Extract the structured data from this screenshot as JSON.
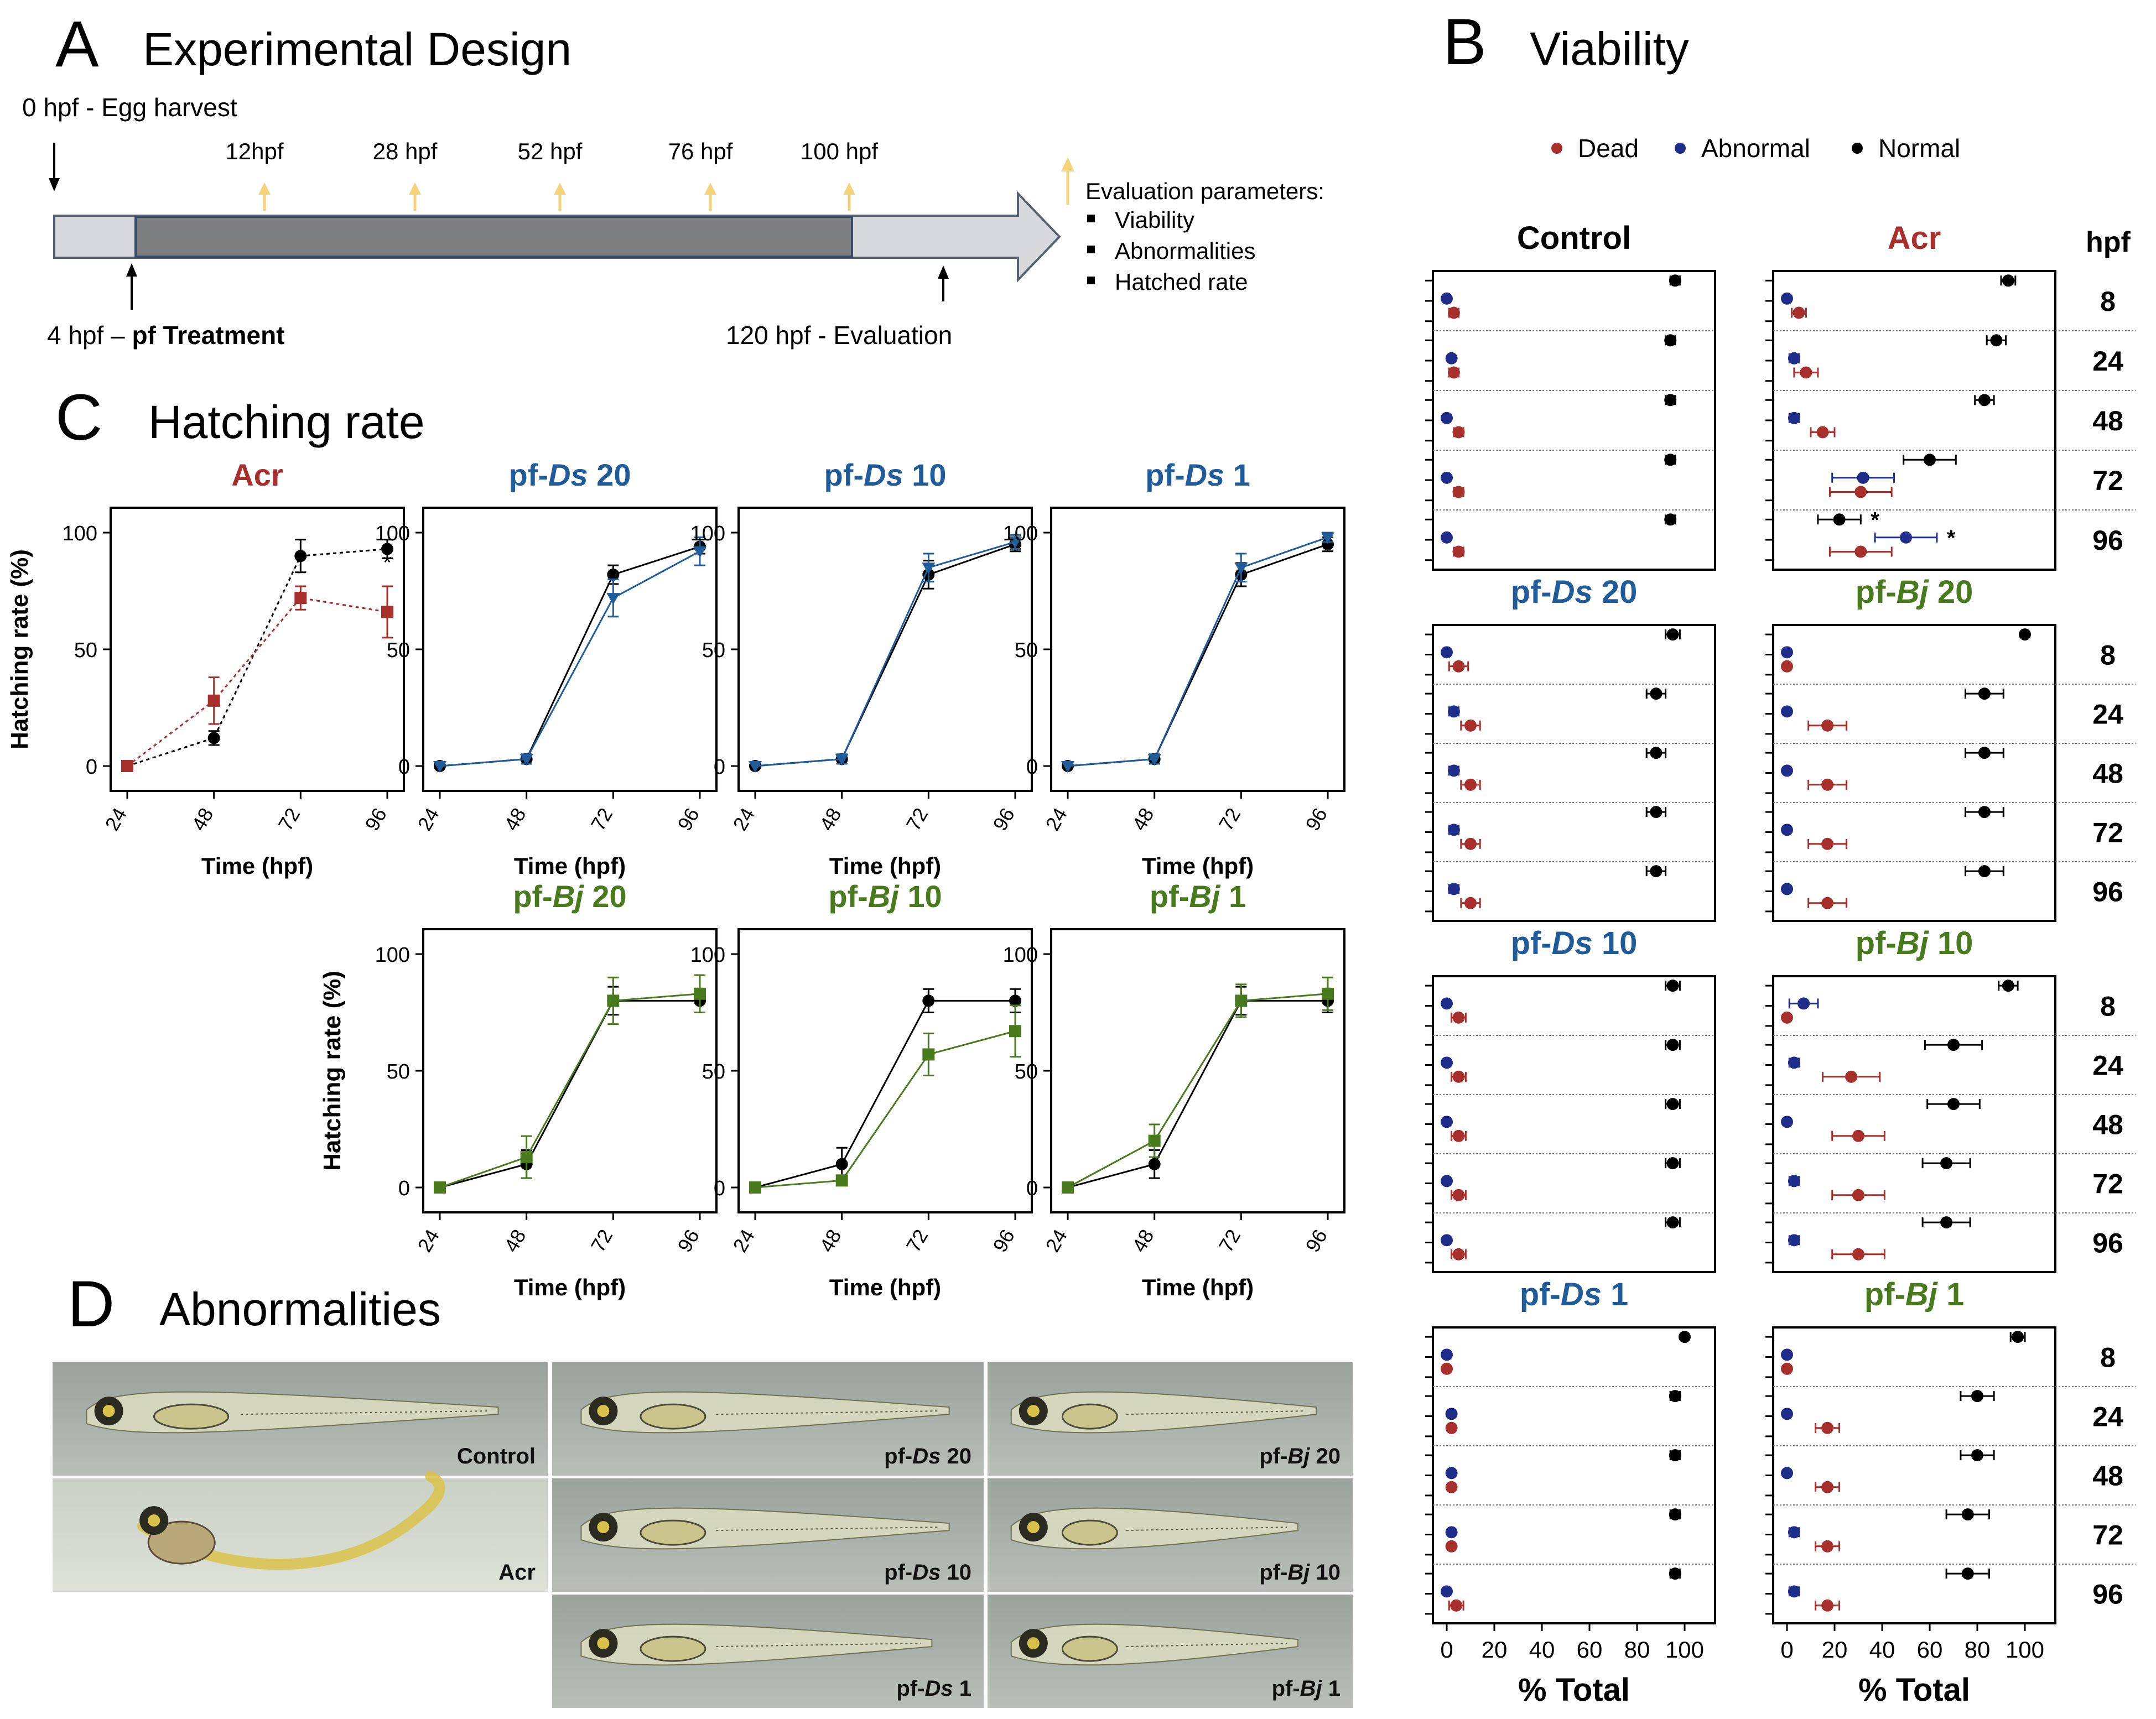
{
  "panelA": {
    "letter": "A",
    "title": "Experimental Design",
    "start_label": "0 hpf - Egg harvest",
    "treatment_prefix": "4 hpf – ",
    "treatment_bold": "pf Treatment",
    "end_label": "120 hpf - Evaluation",
    "timepoints": [
      "12hpf",
      "28 hpf",
      "52 hpf",
      "76 hpf",
      "100 hpf"
    ],
    "eval_title": "Evaluation parameters:",
    "eval_items": [
      "Viability",
      "Abnormalities",
      "Hatched rate"
    ],
    "arrow_color": "#f5d37a"
  },
  "panelB": {
    "letter": "B",
    "title": "Viability",
    "hpf_header": "hpf",
    "legend": [
      {
        "label": "Dead",
        "color": "#a8302c"
      },
      {
        "label": "Abnormal",
        "color": "#1f2d8a"
      },
      {
        "label": "Normal",
        "color": "#000000"
      }
    ],
    "xlabel": "% Total",
    "x_ticks": [
      "0",
      "20",
      "40",
      "60",
      "80",
      "100"
    ],
    "hpf_labels": [
      "8",
      "24",
      "48",
      "72",
      "96"
    ]
  },
  "panelC": {
    "letter": "C",
    "title": "Hatching rate",
    "ylabel": "Hatching rate (%)",
    "xlabel": "Time (hpf)",
    "x_ticks": [
      "24",
      "48",
      "72",
      "96"
    ],
    "y_ticks": [
      "0",
      "50",
      "100"
    ],
    "asterisk": "*"
  },
  "panelD": {
    "letter": "D",
    "title": "Abnormalities",
    "images": [
      {
        "label": "Control"
      },
      {
        "label": "Acr"
      },
      {
        "label_prefix": "pf-",
        "label_italic": "Ds",
        "label_suffix": " 20"
      },
      {
        "label_prefix": "pf-",
        "label_italic": "Ds",
        "label_suffix": " 10"
      },
      {
        "label_prefix": "pf-",
        "label_italic": "Ds",
        "label_suffix": " 1"
      },
      {
        "label_prefix": "pf-",
        "label_italic": "Bj",
        "label_suffix": " 20"
      },
      {
        "label_prefix": "pf-",
        "label_italic": "Bj",
        "label_suffix": " 10"
      },
      {
        "label_prefix": "pf-",
        "label_italic": "Bj",
        "label_suffix": " 1"
      }
    ]
  },
  "colors": {
    "acr": "#a8302c",
    "ds": "#1f5c99",
    "bj": "#4a7a1e",
    "abnormal": "#1f2d8a",
    "normal": "#000000",
    "dead": "#a8302c"
  },
  "chart_data": [
    {
      "type": "scatter",
      "panel": "B",
      "title": "Control",
      "title_color": "#000000",
      "x_axis": "% Total",
      "xlim": [
        0,
        100
      ],
      "hpf": [
        8,
        24,
        48,
        72,
        96
      ],
      "series": [
        {
          "name": "Normal",
          "values": [
            96,
            94,
            94,
            94,
            94
          ],
          "error": [
            2,
            2,
            2,
            2,
            2
          ]
        },
        {
          "name": "Abnormal",
          "values": [
            0,
            2,
            0,
            0,
            0
          ],
          "error": [
            0,
            1,
            0,
            0,
            0
          ]
        },
        {
          "name": "Dead",
          "values": [
            3,
            3,
            5,
            5,
            5
          ],
          "error": [
            2,
            2,
            2,
            2,
            2
          ]
        }
      ]
    },
    {
      "type": "scatter",
      "panel": "B",
      "title": "Acr",
      "title_color": "#a8302c",
      "x_axis": "% Total",
      "xlim": [
        0,
        100
      ],
      "hpf": [
        8,
        24,
        48,
        72,
        96
      ],
      "series": [
        {
          "name": "Normal",
          "values": [
            93,
            88,
            83,
            60,
            22
          ],
          "error": [
            3,
            4,
            4,
            11,
            9
          ]
        },
        {
          "name": "Abnormal",
          "values": [
            0,
            3,
            3,
            32,
            50
          ],
          "error": [
            0,
            2,
            2,
            13,
            13
          ]
        },
        {
          "name": "Dead",
          "values": [
            5,
            8,
            15,
            31,
            31
          ],
          "error": [
            3,
            5,
            5,
            13,
            13
          ]
        }
      ],
      "asterisks": [
        {
          "series": "Normal",
          "hpf": 96,
          "text": "*"
        },
        {
          "series": "Abnormal",
          "hpf": 96,
          "text": "*"
        }
      ]
    },
    {
      "type": "scatter",
      "panel": "B",
      "title_prefix": "pf-",
      "title_italic": "Ds",
      "title_suffix": " 20",
      "title_color": "#1f5c99",
      "x_axis": "% Total",
      "xlim": [
        0,
        100
      ],
      "hpf": [
        8,
        24,
        48,
        72,
        96
      ],
      "series": [
        {
          "name": "Normal",
          "values": [
            95,
            88,
            88,
            88,
            88
          ],
          "error": [
            3,
            4,
            4,
            4,
            4
          ]
        },
        {
          "name": "Abnormal",
          "values": [
            0,
            3,
            3,
            3,
            3
          ],
          "error": [
            0,
            2,
            2,
            2,
            2
          ]
        },
        {
          "name": "Dead",
          "values": [
            5,
            10,
            10,
            10,
            10
          ],
          "error": [
            4,
            4,
            4,
            4,
            4
          ]
        }
      ]
    },
    {
      "type": "scatter",
      "panel": "B",
      "title_prefix": "pf-",
      "title_italic": "Bj",
      "title_suffix": " 20",
      "title_color": "#4a7a1e",
      "x_axis": "% Total",
      "xlim": [
        0,
        100
      ],
      "hpf": [
        8,
        24,
        48,
        72,
        96
      ],
      "series": [
        {
          "name": "Normal",
          "values": [
            100,
            83,
            83,
            83,
            83
          ],
          "error": [
            0,
            8,
            8,
            8,
            8
          ]
        },
        {
          "name": "Abnormal",
          "values": [
            0,
            0,
            0,
            0,
            0
          ],
          "error": [
            0,
            0,
            0,
            0,
            0
          ]
        },
        {
          "name": "Dead",
          "values": [
            0,
            17,
            17,
            17,
            17
          ],
          "error": [
            0,
            8,
            8,
            8,
            8
          ]
        }
      ]
    },
    {
      "type": "scatter",
      "panel": "B",
      "title_prefix": "pf-",
      "title_italic": "Ds",
      "title_suffix": " 10",
      "title_color": "#1f5c99",
      "x_axis": "% Total",
      "xlim": [
        0,
        100
      ],
      "hpf": [
        8,
        24,
        48,
        72,
        96
      ],
      "series": [
        {
          "name": "Normal",
          "values": [
            95,
            95,
            95,
            95,
            95
          ],
          "error": [
            3,
            3,
            3,
            3,
            3
          ]
        },
        {
          "name": "Abnormal",
          "values": [
            0,
            0,
            0,
            0,
            0
          ],
          "error": [
            0,
            0,
            0,
            0,
            0
          ]
        },
        {
          "name": "Dead",
          "values": [
            5,
            5,
            5,
            5,
            5
          ],
          "error": [
            3,
            3,
            3,
            3,
            3
          ]
        }
      ]
    },
    {
      "type": "scatter",
      "panel": "B",
      "title_prefix": "pf-",
      "title_italic": "Bj",
      "title_suffix": " 10",
      "title_color": "#4a7a1e",
      "x_axis": "% Total",
      "xlim": [
        0,
        100
      ],
      "hpf": [
        8,
        24,
        48,
        72,
        96
      ],
      "series": [
        {
          "name": "Normal",
          "values": [
            93,
            70,
            70,
            67,
            67
          ],
          "error": [
            4,
            12,
            11,
            10,
            10
          ]
        },
        {
          "name": "Abnormal",
          "values": [
            7,
            3,
            0,
            3,
            3
          ],
          "error": [
            6,
            2,
            0,
            2,
            2
          ]
        },
        {
          "name": "Dead",
          "values": [
            0,
            27,
            30,
            30,
            30
          ],
          "error": [
            0,
            12,
            11,
            11,
            11
          ]
        }
      ]
    },
    {
      "type": "scatter",
      "panel": "B",
      "title_prefix": "pf-",
      "title_italic": "Ds",
      "title_suffix": " 1",
      "title_color": "#1f5c99",
      "x_axis": "% Total",
      "xlim": [
        0,
        100
      ],
      "hpf": [
        8,
        24,
        48,
        72,
        96
      ],
      "series": [
        {
          "name": "Normal",
          "values": [
            100,
            96,
            96,
            96,
            96
          ],
          "error": [
            0,
            2,
            2,
            2,
            2
          ]
        },
        {
          "name": "Abnormal",
          "values": [
            0,
            2,
            2,
            2,
            0
          ],
          "error": [
            0,
            1,
            1,
            1,
            0
          ]
        },
        {
          "name": "Dead",
          "values": [
            0,
            2,
            2,
            2,
            4
          ],
          "error": [
            0,
            1,
            1,
            1,
            3
          ]
        }
      ]
    },
    {
      "type": "scatter",
      "panel": "B",
      "title_prefix": "pf-",
      "title_italic": "Bj",
      "title_suffix": " 1",
      "title_color": "#4a7a1e",
      "x_axis": "% Total",
      "xlim": [
        0,
        100
      ],
      "hpf": [
        8,
        24,
        48,
        72,
        96
      ],
      "series": [
        {
          "name": "Normal",
          "values": [
            97,
            80,
            80,
            76,
            76
          ],
          "error": [
            3,
            7,
            7,
            9,
            9
          ]
        },
        {
          "name": "Abnormal",
          "values": [
            0,
            0,
            0,
            3,
            3
          ],
          "error": [
            0,
            0,
            0,
            2,
            2
          ]
        },
        {
          "name": "Dead",
          "values": [
            0,
            17,
            17,
            17,
            17
          ],
          "error": [
            0,
            5,
            5,
            5,
            5
          ]
        }
      ]
    },
    {
      "type": "line",
      "panel": "C",
      "title": "Acr",
      "title_color": "#a8302c",
      "x": [
        24,
        48,
        72,
        96
      ],
      "ylim": [
        0,
        100
      ],
      "dashed": true,
      "series": [
        {
          "role": "control",
          "values": [
            0,
            12,
            90,
            93
          ],
          "error": [
            0,
            3,
            7,
            4
          ]
        },
        {
          "role": "treatment",
          "values": [
            0,
            28,
            72,
            66
          ],
          "error": [
            0,
            10,
            5,
            11
          ]
        }
      ],
      "asterisk_at": 96
    },
    {
      "type": "line",
      "panel": "C",
      "title_prefix": "pf-",
      "title_italic": "Ds",
      "title_suffix": " 20",
      "title_color": "#1f5c99",
      "x": [
        24,
        48,
        72,
        96
      ],
      "ylim": [
        0,
        100
      ],
      "series": [
        {
          "role": "control",
          "values": [
            0,
            3,
            82,
            94
          ],
          "error": [
            0,
            2,
            4,
            3
          ]
        },
        {
          "role": "treatment",
          "values": [
            0,
            3,
            72,
            92
          ],
          "error": [
            0,
            2,
            8,
            6
          ]
        }
      ]
    },
    {
      "type": "line",
      "panel": "C",
      "title_prefix": "pf-",
      "title_italic": "Ds",
      "title_suffix": " 10",
      "title_color": "#1f5c99",
      "x": [
        24,
        48,
        72,
        96
      ],
      "ylim": [
        0,
        100
      ],
      "series": [
        {
          "role": "control",
          "values": [
            0,
            3,
            82,
            95
          ],
          "error": [
            0,
            2,
            6,
            3
          ]
        },
        {
          "role": "treatment",
          "values": [
            0,
            3,
            85,
            96
          ],
          "error": [
            0,
            2,
            6,
            3
          ]
        }
      ]
    },
    {
      "type": "line",
      "panel": "C",
      "title_prefix": "pf-",
      "title_italic": "Ds",
      "title_suffix": " 1",
      "title_color": "#1f5c99",
      "x": [
        24,
        48,
        72,
        96
      ],
      "ylim": [
        0,
        100
      ],
      "series": [
        {
          "role": "control",
          "values": [
            0,
            3,
            82,
            95
          ],
          "error": [
            0,
            2,
            5,
            3
          ]
        },
        {
          "role": "treatment",
          "values": [
            0,
            3,
            85,
            98
          ],
          "error": [
            0,
            2,
            6,
            2
          ]
        }
      ]
    },
    {
      "type": "line",
      "panel": "C",
      "title_prefix": "pf-",
      "title_italic": "Bj",
      "title_suffix": " 20",
      "title_color": "#4a7a1e",
      "x": [
        24,
        48,
        72,
        96
      ],
      "ylim": [
        0,
        100
      ],
      "series": [
        {
          "role": "control",
          "values": [
            0,
            10,
            80,
            80
          ],
          "error": [
            0,
            6,
            6,
            5
          ]
        },
        {
          "role": "treatment",
          "values": [
            0,
            13,
            80,
            83
          ],
          "error": [
            0,
            9,
            10,
            8
          ]
        }
      ]
    },
    {
      "type": "line",
      "panel": "C",
      "title_prefix": "pf-",
      "title_italic": "Bj",
      "title_suffix": " 10",
      "title_color": "#4a7a1e",
      "x": [
        24,
        48,
        72,
        96
      ],
      "ylim": [
        0,
        100
      ],
      "series": [
        {
          "role": "control",
          "values": [
            0,
            10,
            80,
            80
          ],
          "error": [
            0,
            7,
            5,
            5
          ]
        },
        {
          "role": "treatment",
          "values": [
            0,
            3,
            57,
            67
          ],
          "error": [
            0,
            2,
            9,
            11
          ]
        }
      ]
    },
    {
      "type": "line",
      "panel": "C",
      "title_prefix": "pf-",
      "title_italic": "Bj",
      "title_suffix": " 1",
      "title_color": "#4a7a1e",
      "x": [
        24,
        48,
        72,
        96
      ],
      "ylim": [
        0,
        100
      ],
      "series": [
        {
          "role": "control",
          "values": [
            0,
            10,
            80,
            80
          ],
          "error": [
            0,
            6,
            6,
            5
          ]
        },
        {
          "role": "treatment",
          "values": [
            0,
            20,
            80,
            83
          ],
          "error": [
            0,
            7,
            7,
            7
          ]
        }
      ]
    }
  ]
}
